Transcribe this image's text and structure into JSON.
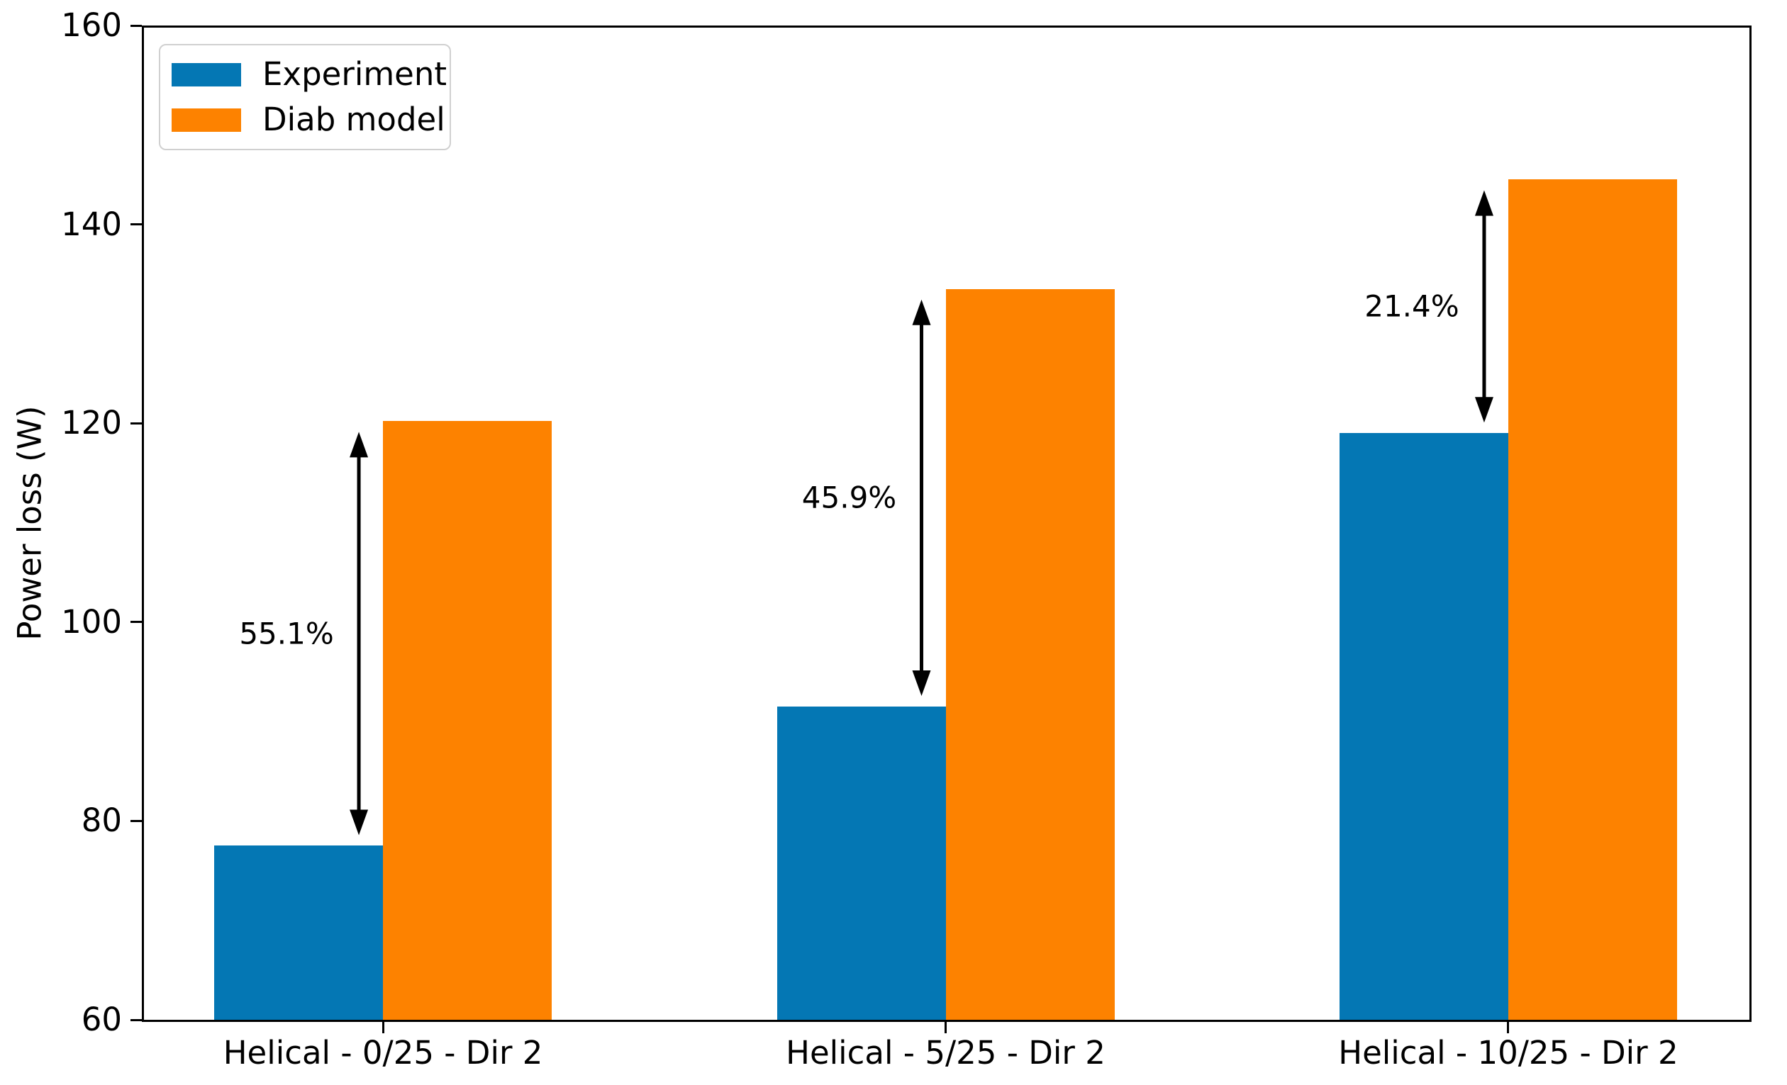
{
  "chart_data": {
    "type": "bar",
    "title": "",
    "xlabel": "",
    "ylabel": "Power loss (W)",
    "ylim": [
      60,
      160
    ],
    "yticks": [
      60,
      80,
      100,
      120,
      140,
      160
    ],
    "grid": false,
    "categories": [
      "Helical - 0/25 - Dir 2",
      "Helical - 5/25 - Dir 2",
      "Helical - 10/25 - Dir 2"
    ],
    "series": [
      {
        "name": "Experiment",
        "color": "#0477b4",
        "values": [
          77.5,
          91.5,
          119.0
        ]
      },
      {
        "name": "Diab model",
        "color": "#fd8200",
        "values": [
          120.2,
          133.5,
          144.5
        ]
      }
    ],
    "annotations": [
      {
        "label": "55.1%",
        "category_index": 0,
        "from_series": "Experiment",
        "to_series": "Diab model"
      },
      {
        "label": "45.9%",
        "category_index": 1,
        "from_series": "Experiment",
        "to_series": "Diab model"
      },
      {
        "label": "21.4%",
        "category_index": 2,
        "from_series": "Experiment",
        "to_series": "Diab model"
      }
    ],
    "legend": {
      "position": "upper left",
      "entries": [
        "Experiment",
        "Diab model"
      ]
    },
    "colors": {
      "experiment_bar": "#0477b4",
      "diab_model_bar": "#fd8200",
      "axis": "#000000",
      "annotation_arrow": "#000000",
      "legend_border": "#d0d0d0",
      "background": "#ffffff"
    }
  }
}
